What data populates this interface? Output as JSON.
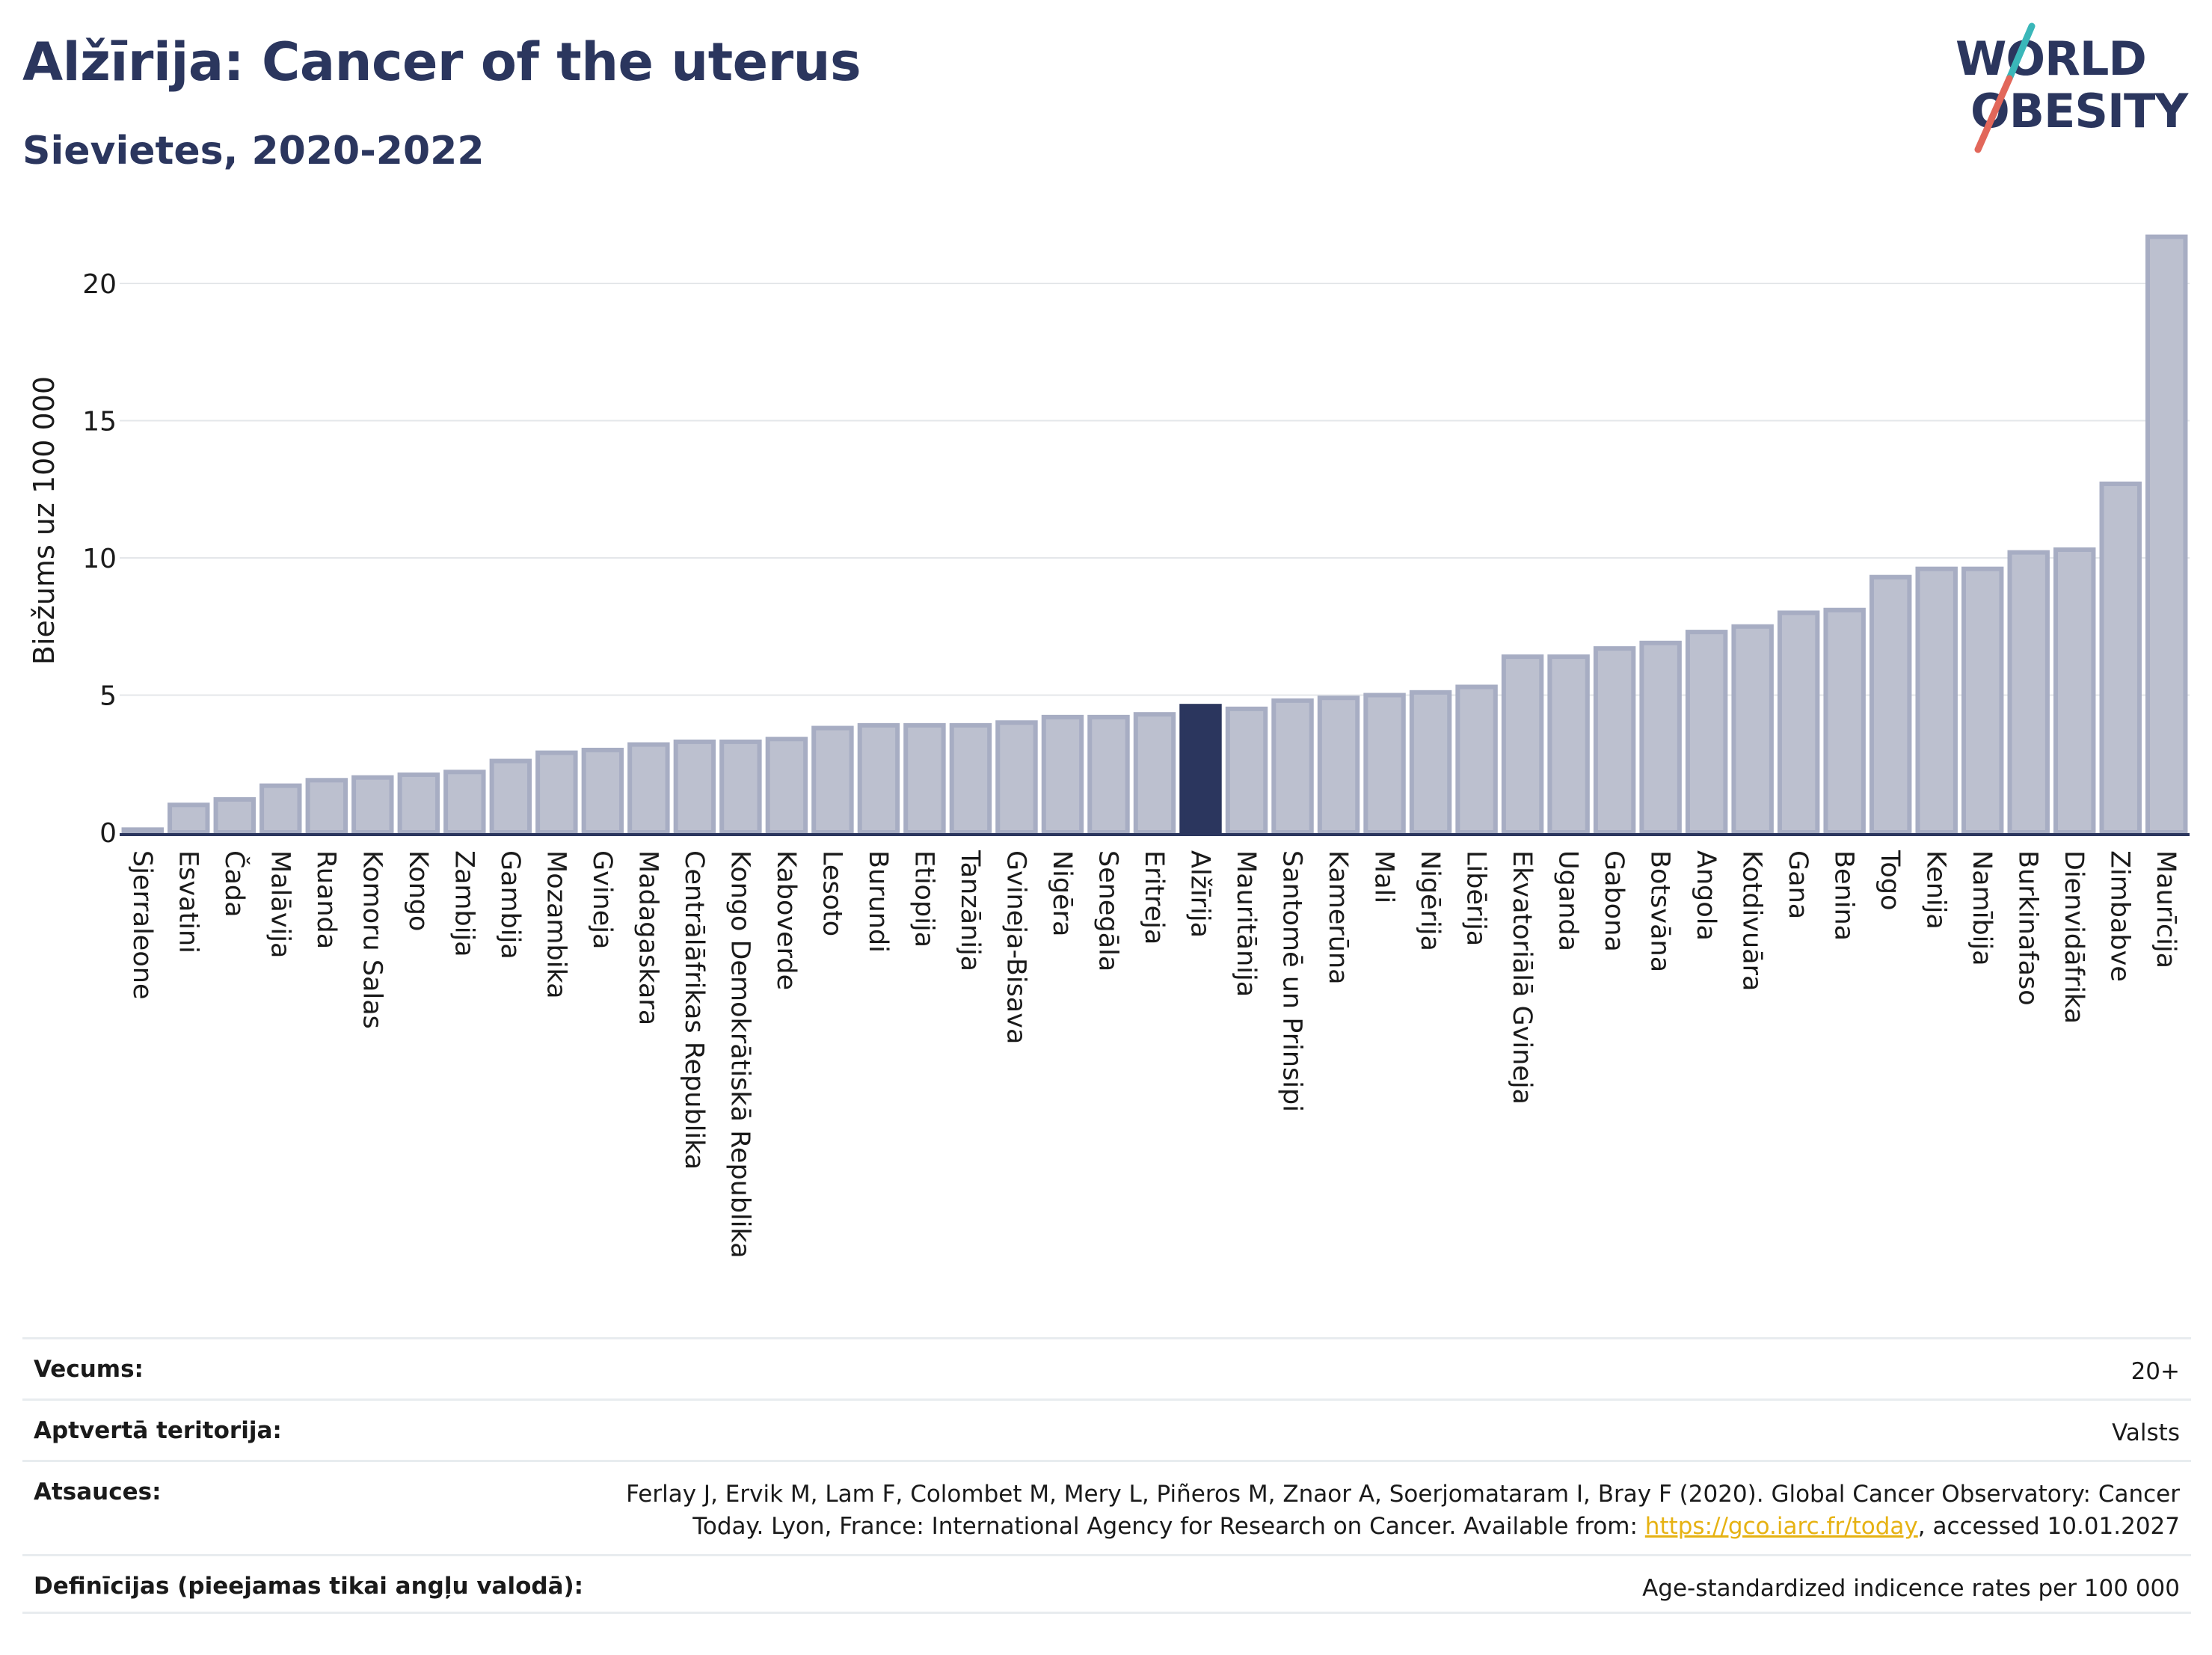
{
  "header": {
    "title": "Alžīrija: Cancer of the uterus",
    "subtitle": "Sievietes, 2020-2022",
    "logo_line1": "WORLD",
    "logo_line2": "OBESITY"
  },
  "colors": {
    "title": "#2b365e",
    "bar_fill": "#bcc0cf",
    "bar_stroke": "#a7adc3",
    "highlight": "#2b365e",
    "grid": "#e4e7ea",
    "link": "#e6b213",
    "logo_slash_teal": "#3ab7b9",
    "logo_slash_red": "#e2675a"
  },
  "chart_data": {
    "type": "bar",
    "title": "Alžīrija: Cancer of the uterus",
    "subtitle": "Sievietes, 2020-2022",
    "xlabel": "",
    "ylabel": "Biežums uz 100 000",
    "ylim": [
      0,
      22
    ],
    "yticks": [
      0,
      5,
      10,
      15,
      20
    ],
    "grid": true,
    "highlight": "Alžīrija",
    "categories": [
      "Sjerraleone",
      "Esvatini",
      "Čada",
      "Malāvija",
      "Ruanda",
      "Komoru Salas",
      "Kongo",
      "Zambija",
      "Gambija",
      "Mozambika",
      "Gvineja",
      "Madagaskara",
      "Centrālāfrikas Republika",
      "Kongo Demokrātiskā Republika",
      "Kaboverde",
      "Lesoto",
      "Burundi",
      "Etiopija",
      "Tanzānija",
      "Gvineja-Bisava",
      "Nigēra",
      "Senegāla",
      "Eritreja",
      "Alžīrija",
      "Mauritānija",
      "Santomē un Prinsipi",
      "Kamerūna",
      "Mali",
      "Nigērija",
      "Libērija",
      "Ekvatoriālā Gvineja",
      "Uganda",
      "Gabona",
      "Botsvāna",
      "Angola",
      "Kotdivuāra",
      "Gana",
      "Benina",
      "Togo",
      "Kenija",
      "Namībija",
      "Burkinafaso",
      "Dienvidāfrika",
      "Zimbabve",
      "Maurīcija"
    ],
    "values": [
      0.1,
      1.0,
      1.2,
      1.7,
      1.9,
      2.0,
      2.1,
      2.2,
      2.6,
      2.9,
      3.0,
      3.2,
      3.3,
      3.3,
      3.4,
      3.8,
      3.9,
      3.9,
      3.9,
      4.0,
      4.2,
      4.2,
      4.3,
      4.6,
      4.5,
      4.8,
      4.9,
      5.0,
      5.1,
      5.3,
      6.4,
      6.4,
      6.7,
      6.9,
      7.3,
      7.5,
      8.0,
      8.1,
      9.3,
      9.6,
      9.6,
      10.2,
      10.3,
      12.7,
      21.7
    ]
  },
  "footer": {
    "age_label": "Vecums:",
    "age_value": "20+",
    "territory_label": "Aptvertā teritorija:",
    "territory_value": "Valsts",
    "refs_label": "Atsauces:",
    "refs_line1": "Ferlay J, Ervik M, Lam F, Colombet M, Mery L, Piñeros M, Znaor A, Soerjomataram I, Bray F (2020). Global Cancer Observatory: Cancer",
    "refs_line2_pre": "Today. Lyon, France: International Agency for Research on Cancer. Available from: ",
    "refs_link": "https://gco.iarc.fr/today",
    "refs_line2_post": ", accessed 10.01.2027",
    "defs_label": "Definīcijas (pieejamas tikai angļu valodā):",
    "defs_value": "Age-standardized indicence rates per 100 000"
  }
}
